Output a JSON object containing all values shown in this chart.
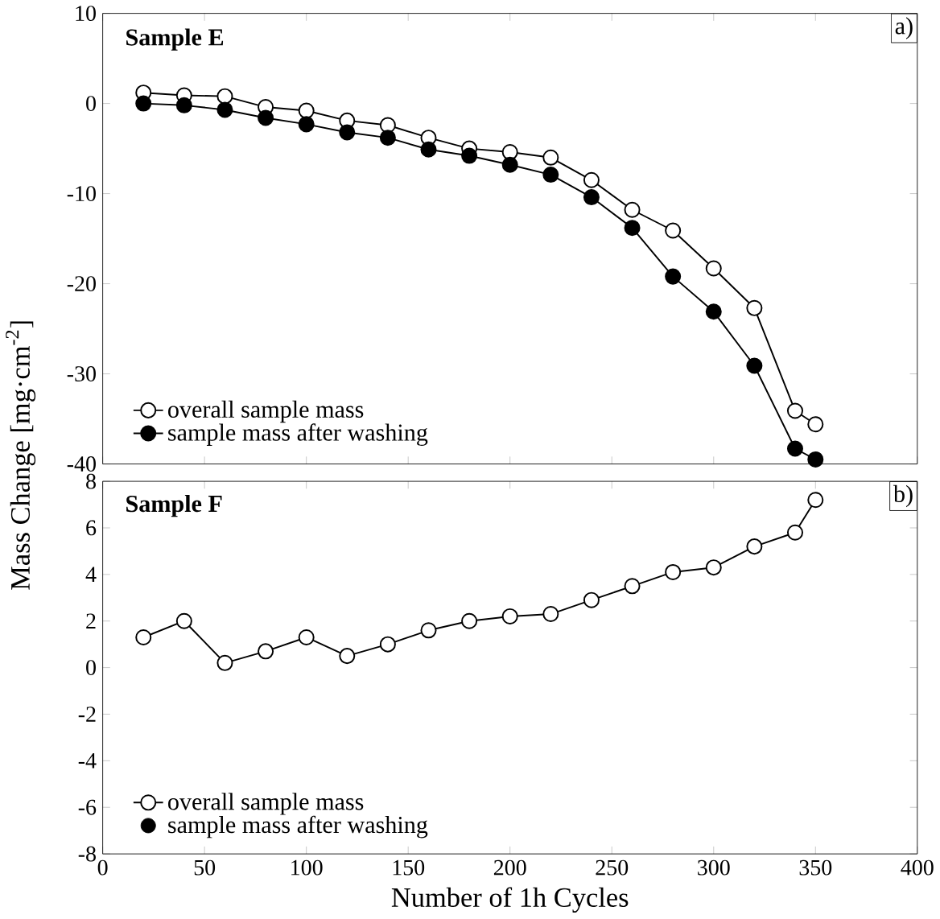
{
  "chart_data": [
    {
      "type": "line",
      "x": [
        20,
        40,
        60,
        80,
        100,
        120,
        140,
        160,
        180,
        200,
        220,
        240,
        260,
        280,
        300,
        320,
        340,
        350
      ],
      "series": [
        {
          "name": "overall sample mass",
          "color": "#ffffff",
          "values": [
            1.2,
            0.9,
            0.8,
            -0.4,
            -0.8,
            -1.9,
            -2.4,
            -3.8,
            -5,
            -5.4,
            -6,
            -8.5,
            -11.8,
            -14.1,
            -18.3,
            -22.7,
            -34.1,
            -35.6
          ]
        },
        {
          "name": "sample mass after washing",
          "color": "#000000",
          "values": [
            0,
            -0.2,
            -0.7,
            -1.6,
            -2.3,
            -3.2,
            -3.8,
            -5.1,
            -5.8,
            -6.8,
            -7.9,
            -10.4,
            -13.8,
            -19.2,
            -23.1,
            -29.1,
            -38.3,
            -39.5
          ]
        }
      ],
      "ylabel": "Mass Change [mg·cm$^{-2}$]",
      "annotations": [
        "Sample E",
        "a)"
      ],
      "xlim": [
        0,
        400
      ],
      "xticks": [
        0,
        50,
        100,
        150,
        200,
        250,
        300,
        350,
        400
      ],
      "ylim": [
        -40,
        10
      ],
      "yticks": [
        -40,
        -30,
        -20,
        -10,
        0,
        10
      ],
      "tick_labels": "y",
      "marker": "circle",
      "legend": "bottom left",
      "grid": false
    },
    {
      "type": "line",
      "x": [
        20,
        40,
        60,
        80,
        100,
        120,
        140,
        160,
        180,
        200,
        220,
        240,
        260,
        280,
        300,
        320,
        340,
        350
      ],
      "series": [
        {
          "name": "overall sample mass",
          "color": "#ffffff",
          "values": [
            1.3,
            2.0,
            0.2,
            0.7,
            1.3,
            0.5,
            1.0,
            1.6,
            2.0,
            2.2,
            2.3,
            2.9,
            3.5,
            4.1,
            4.3,
            5.2,
            5.8,
            7.2
          ]
        },
        {
          "name": "sample mass after washing",
          "color": "#000000",
          "values": [
            null,
            null,
            null,
            null,
            null,
            null,
            null,
            null,
            null,
            null,
            null,
            null,
            null,
            null,
            null,
            null,
            null,
            null
          ]
        }
      ],
      "xlabel": "Number of 1h Cycles",
      "annotations": [
        "Sample F",
        "b)"
      ],
      "xlim": [
        0,
        400
      ],
      "xticks": [
        0,
        50,
        100,
        150,
        200,
        250,
        300,
        350,
        400
      ],
      "ylim": [
        -8,
        8
      ],
      "yticks": [
        -8,
        -6,
        -4,
        -2,
        0,
        2,
        4,
        6,
        8
      ],
      "marker": "circle",
      "legend": "bottom left",
      "grid": false
    }
  ]
}
